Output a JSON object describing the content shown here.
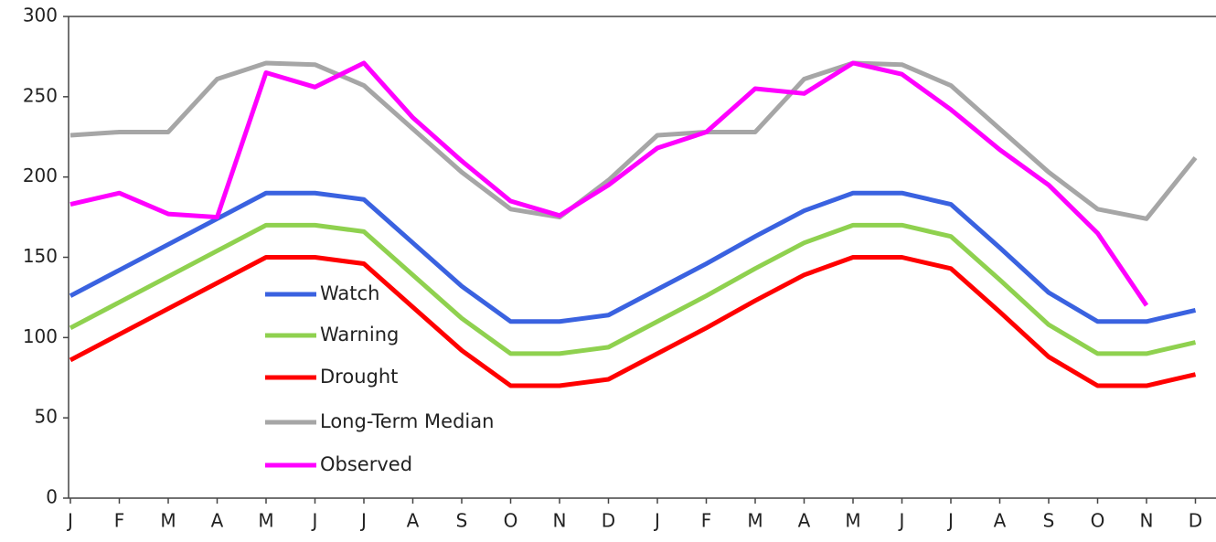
{
  "chart_data": {
    "type": "line",
    "categories": [
      "J",
      "F",
      "M",
      "A",
      "M",
      "J",
      "J",
      "A",
      "S",
      "O",
      "N",
      "D",
      "J",
      "F",
      "M",
      "A",
      "M",
      "J",
      "J",
      "A",
      "S",
      "O",
      "N",
      "D"
    ],
    "series": [
      {
        "name": "Watch",
        "color": "#3a62e0",
        "values": [
          126,
          142,
          158,
          174,
          190,
          190,
          186,
          159,
          132,
          110,
          110,
          114,
          130,
          146,
          163,
          179,
          190,
          190,
          183,
          156,
          128,
          110,
          110,
          117
        ]
      },
      {
        "name": "Warning",
        "color": "#8fd14f",
        "values": [
          106,
          122,
          138,
          154,
          170,
          170,
          166,
          139,
          112,
          90,
          90,
          94,
          110,
          126,
          143,
          159,
          170,
          170,
          163,
          136,
          108,
          90,
          90,
          97
        ]
      },
      {
        "name": "Drought",
        "color": "#ff0000",
        "values": [
          86,
          102,
          118,
          134,
          150,
          150,
          146,
          119,
          92,
          70,
          70,
          74,
          90,
          106,
          123,
          139,
          150,
          150,
          143,
          116,
          88,
          70,
          70,
          77
        ]
      },
      {
        "name": "Long-Term Median",
        "color": "#a6a6a6",
        "values": [
          226,
          228,
          228,
          261,
          271,
          270,
          257,
          230,
          203,
          180,
          175,
          198,
          226,
          228,
          228,
          261,
          271,
          270,
          257,
          230,
          203,
          180,
          174,
          212
        ]
      },
      {
        "name": "Observed",
        "color": "#ff00ff",
        "values": [
          183,
          190,
          177,
          175,
          265,
          256,
          271,
          237,
          210,
          185,
          176,
          195,
          218,
          228,
          255,
          252,
          271,
          264,
          242,
          217,
          195,
          165,
          120,
          null
        ]
      }
    ],
    "ylim": [
      0,
      300
    ],
    "yticks": [
      0,
      50,
      100,
      150,
      200,
      250,
      300
    ]
  }
}
